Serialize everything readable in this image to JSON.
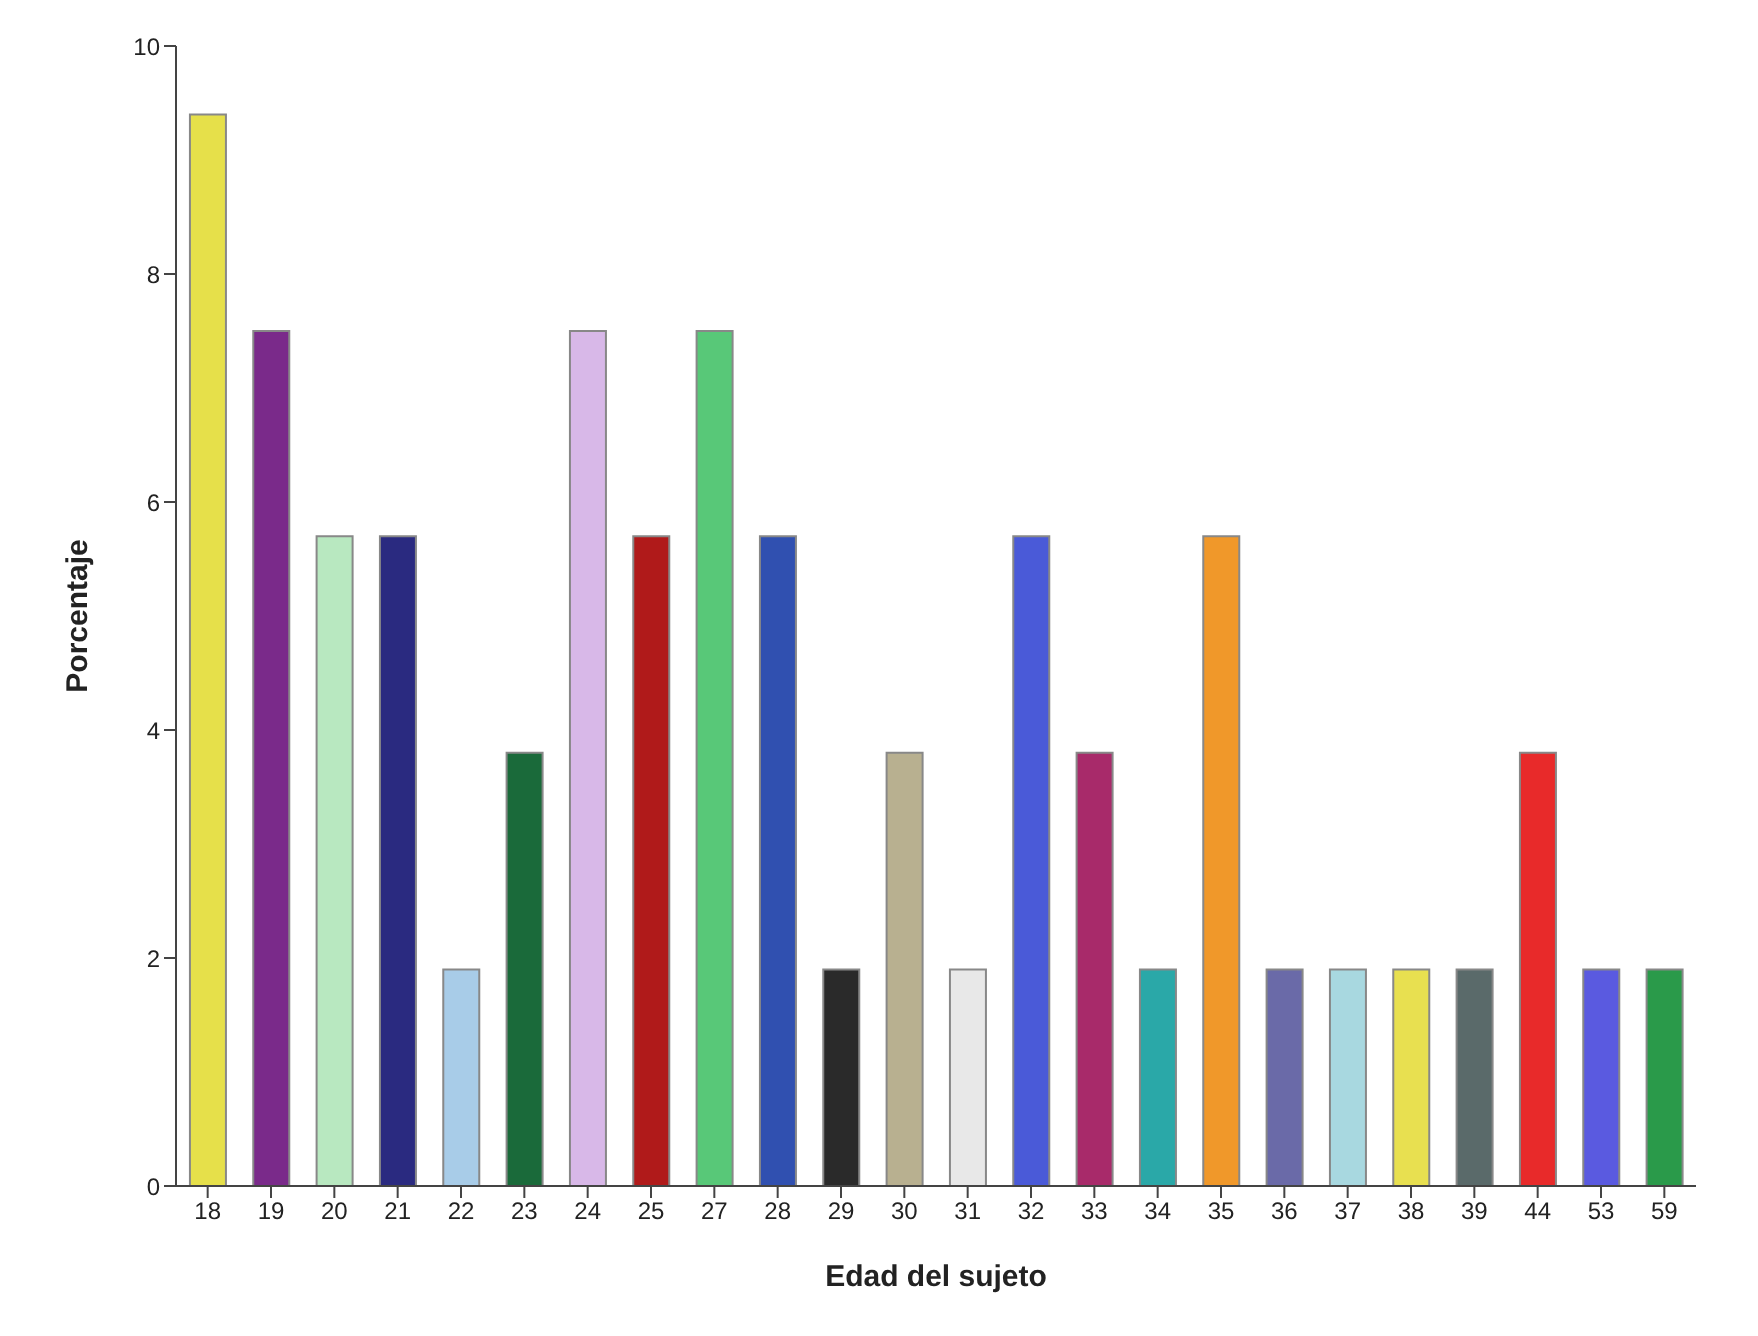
{
  "chart_data": {
    "type": "bar",
    "xlabel": "Edad del sujeto",
    "ylabel": "Porcentaje",
    "categories": [
      "18",
      "19",
      "20",
      "21",
      "22",
      "23",
      "24",
      "25",
      "27",
      "28",
      "29",
      "30",
      "31",
      "32",
      "33",
      "34",
      "35",
      "36",
      "37",
      "38",
      "39",
      "44",
      "53",
      "59"
    ],
    "values": [
      9.4,
      7.5,
      5.7,
      5.7,
      1.9,
      3.8,
      7.5,
      5.7,
      7.5,
      5.7,
      1.9,
      3.8,
      1.9,
      5.7,
      3.8,
      1.9,
      5.7,
      1.9,
      1.9,
      1.9,
      1.9,
      3.8,
      1.9,
      1.9
    ],
    "colors": [
      "#e6e04a",
      "#7a2a8a",
      "#b8e8c0",
      "#2a2a80",
      "#a8cce8",
      "#1a6a3a",
      "#d8b8e8",
      "#b01a1a",
      "#58c878",
      "#3050b0",
      "#2a2a2a",
      "#b8b090",
      "#e8e8e8",
      "#4a5ad8",
      "#a82a6a",
      "#2aa8a8",
      "#f0982a",
      "#6a6aa8",
      "#a8d8e0",
      "#e8e050",
      "#5a6a6a",
      "#e82a2a",
      "#5a5ae0",
      "#2a9a4a"
    ],
    "ylim": [
      0,
      10
    ],
    "yticks": [
      0,
      2,
      4,
      6,
      8,
      10
    ],
    "grid": false,
    "legend": false
  }
}
